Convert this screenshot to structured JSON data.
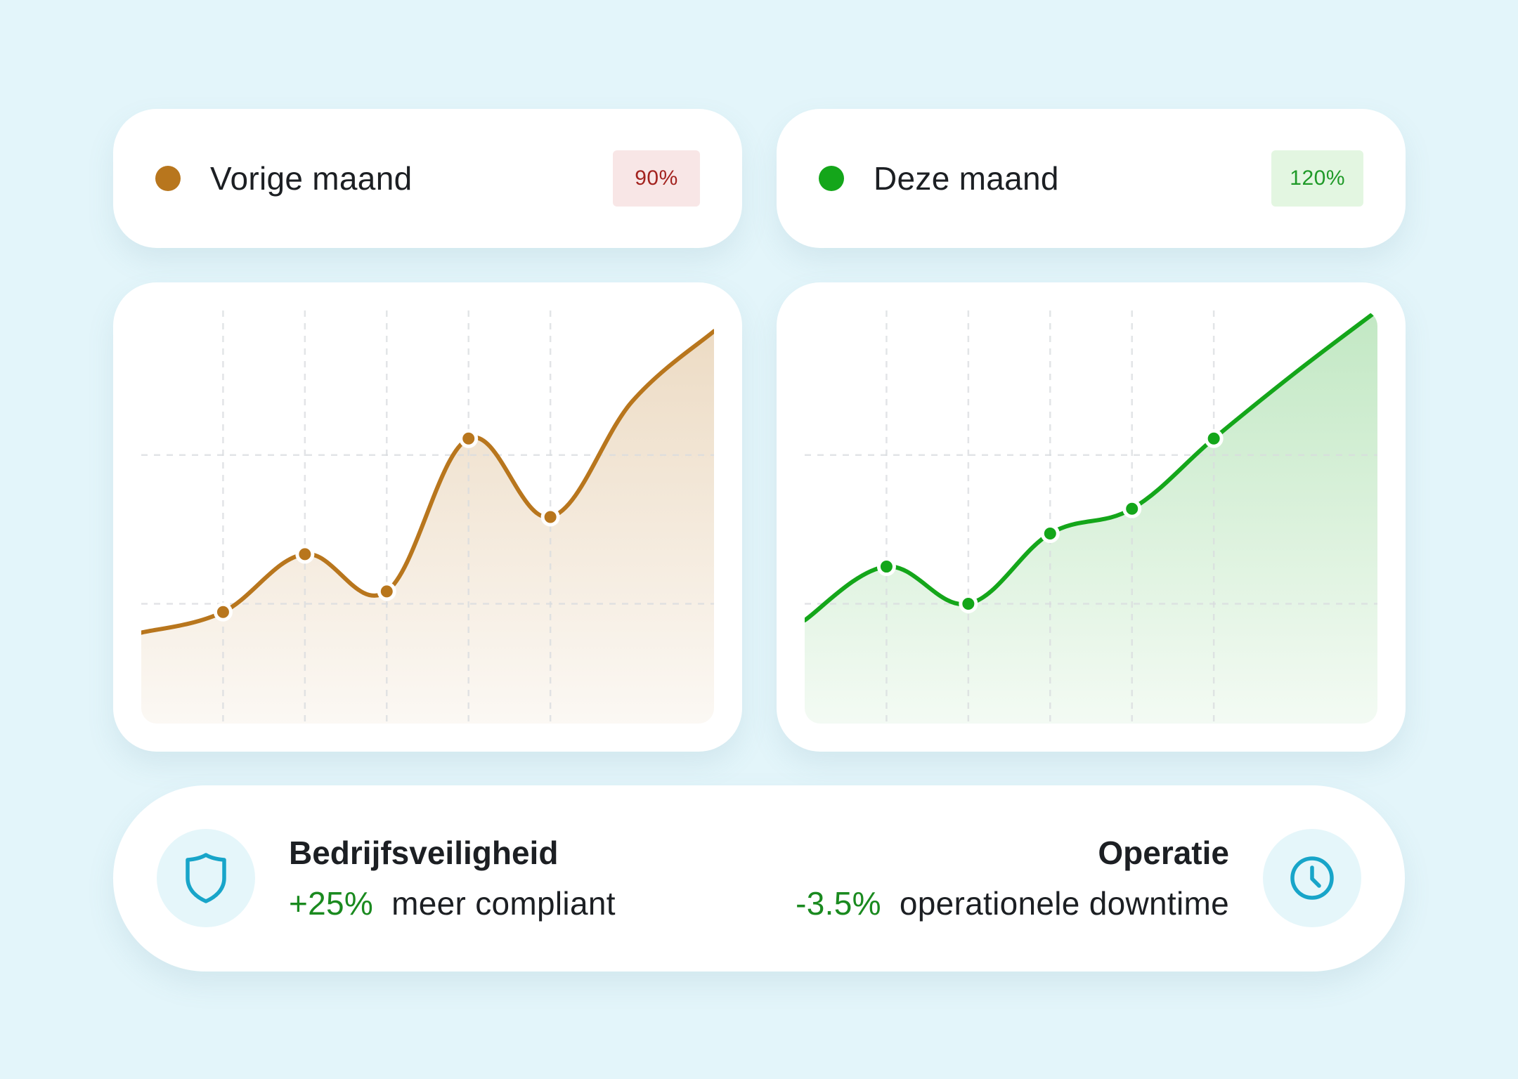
{
  "legends": [
    {
      "label": "Vorige maand",
      "badge": "90%",
      "dot_color": "#b8761d",
      "badge_bg": "#f8e6e6",
      "badge_color": "#a3231f"
    },
    {
      "label": "Deze maand",
      "badge": "120%",
      "dot_color": "#14a61a",
      "badge_bg": "#e3f6e1",
      "badge_color": "#1f9a28"
    }
  ],
  "chart_data": [
    {
      "type": "area",
      "name": "Vorige maand",
      "color": "#b8761d",
      "x": [
        0,
        1,
        2,
        3,
        4,
        5,
        6,
        7
      ],
      "y": [
        22,
        27,
        41,
        32,
        69,
        50,
        78,
        95
      ],
      "marker_indices": [
        1,
        2,
        3,
        4,
        5
      ],
      "xlim": [
        0,
        7
      ],
      "ylim": [
        0,
        100
      ],
      "grid": true
    },
    {
      "type": "area",
      "name": "Deze maand",
      "color": "#14a61a",
      "x": [
        0,
        1,
        2,
        3,
        4,
        5,
        6,
        7
      ],
      "y": [
        25,
        38,
        29,
        46,
        52,
        69,
        85,
        100
      ],
      "marker_indices": [
        1,
        2,
        3,
        4,
        5
      ],
      "xlim": [
        0,
        7
      ],
      "ylim": [
        0,
        100
      ],
      "grid": true
    }
  ],
  "stats": {
    "left": {
      "title": "Bedrijfsveiligheid",
      "value": "+25%",
      "text": "meer compliant",
      "icon": "shield-icon"
    },
    "right": {
      "title": "Operatie",
      "value": "-3.5%",
      "text": "operationele downtime",
      "icon": "clock-icon"
    },
    "value_color": "#1a8a1f",
    "icon_color": "#18a5c9"
  }
}
